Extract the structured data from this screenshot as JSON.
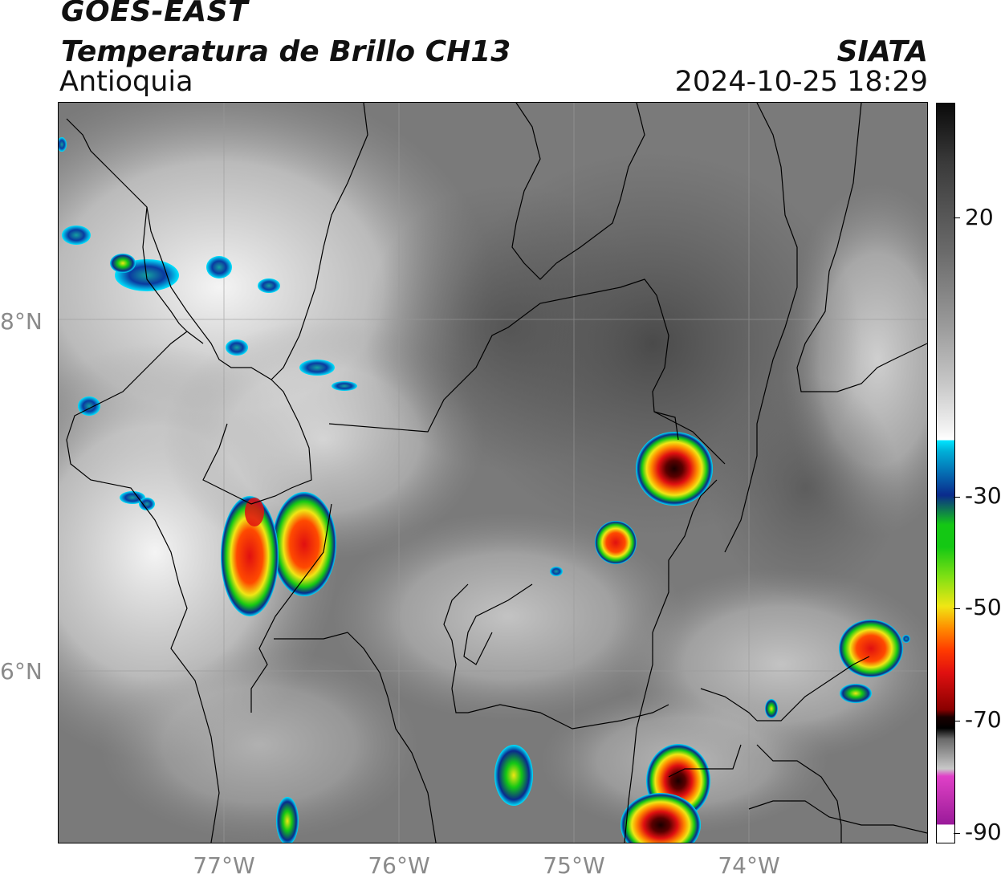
{
  "header": {
    "satellite": "GOES-EAST",
    "product": "Temperatura de Brillo CH13",
    "region": "Antioquia",
    "agency": "SIATA",
    "datetime": "2024-10-25 18:29"
  },
  "map": {
    "lat_labels": [
      "8°N",
      "6°N"
    ],
    "lon_labels": [
      "77°W",
      "76°W",
      "75°W",
      "74°W"
    ]
  },
  "colorbar": {
    "tick_labels": [
      "20",
      "-30",
      "-50",
      "-70",
      "-90"
    ],
    "colors": {
      "gray_bright": "#f2f2f2",
      "gray_dark": "#3a3a3a",
      "cyan": "#00e5ff",
      "blue": "#0a2a8c",
      "green": "#14c814",
      "yellow": "#f0e614",
      "orange": "#ff8c00",
      "red": "#e01010",
      "dark_red": "#5a0000",
      "black": "#000000",
      "pink": "#e040c8",
      "purple": "#9a1a9a"
    }
  }
}
